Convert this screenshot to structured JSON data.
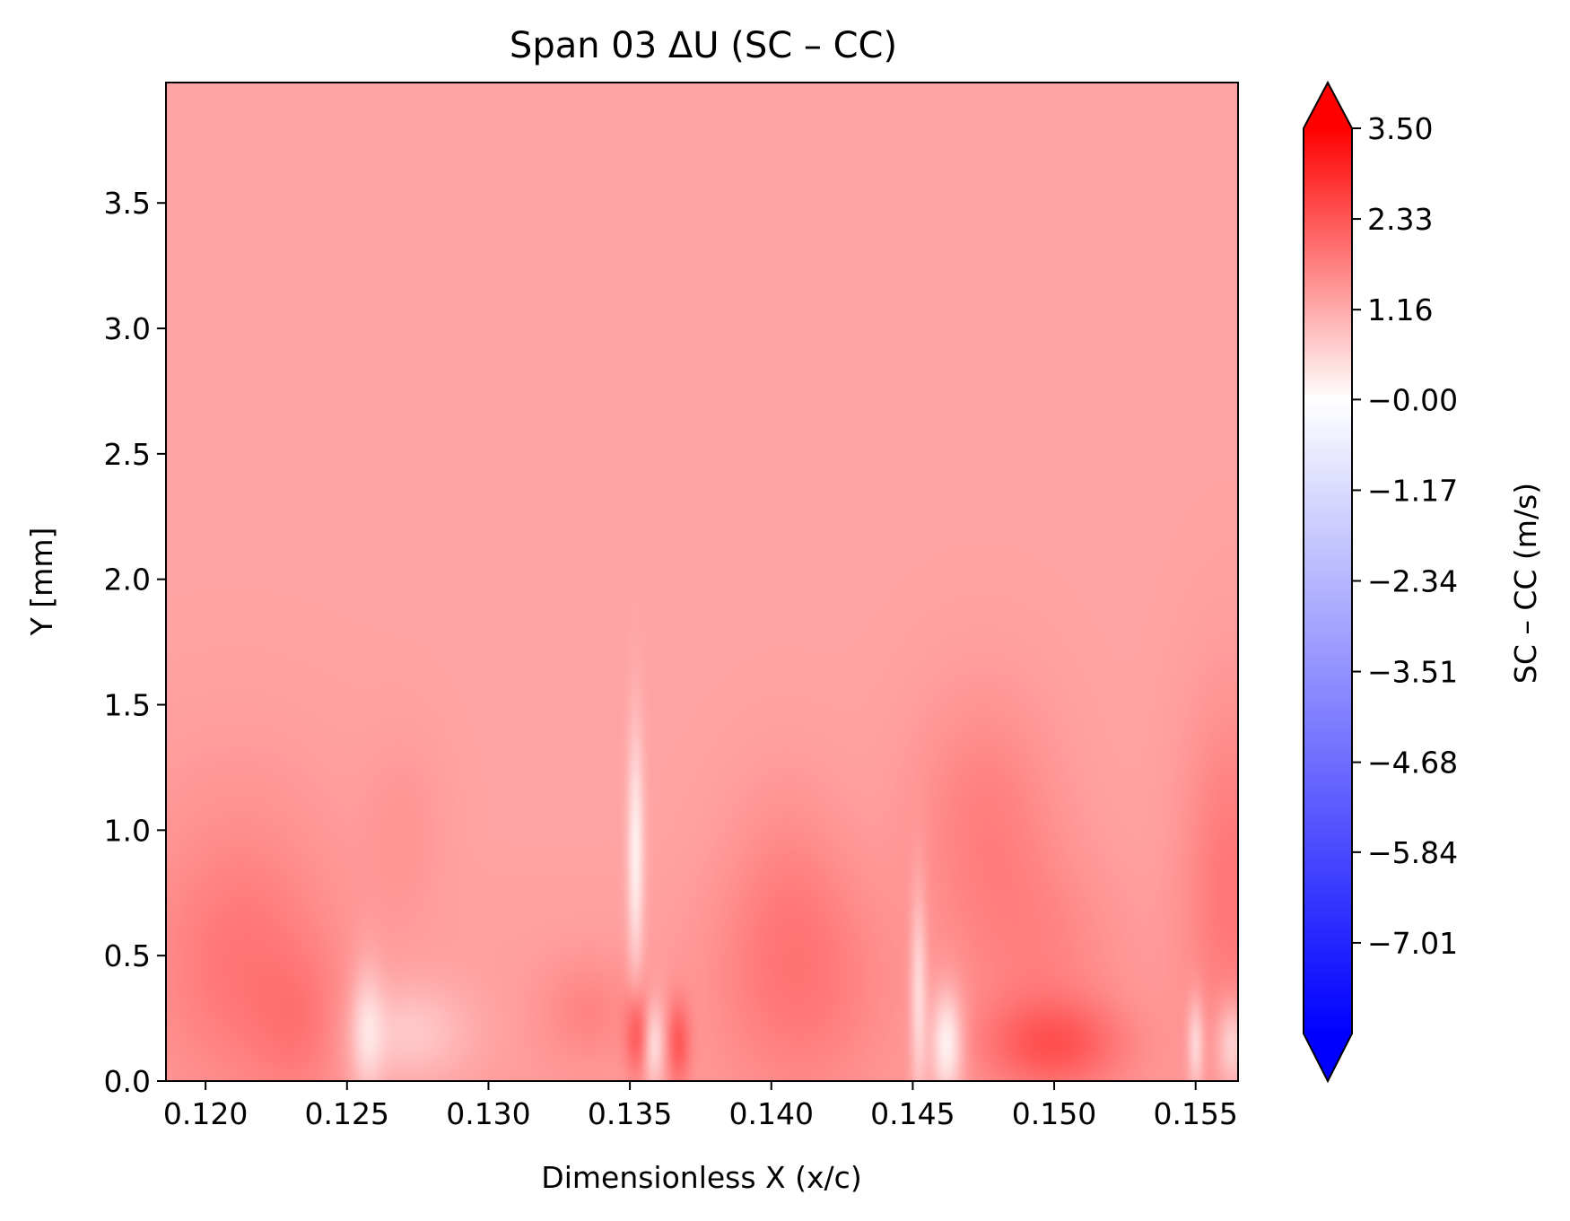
{
  "chart_data": {
    "type": "heatmap",
    "title": "Span 03  ΔU (SC – CC)",
    "xlabel": "Dimensionless X (x/c)",
    "ylabel": "Y [mm]",
    "xlim": [
      0.1186,
      0.1565
    ],
    "ylim": [
      0.0,
      3.98
    ],
    "x_ticks": [
      0.12,
      0.125,
      0.13,
      0.135,
      0.14,
      0.145,
      0.15,
      0.155
    ],
    "x_tick_labels": [
      "0.120",
      "0.125",
      "0.130",
      "0.135",
      "0.140",
      "0.145",
      "0.150",
      "0.155"
    ],
    "y_ticks": [
      0.0,
      0.5,
      1.0,
      1.5,
      2.0,
      2.5,
      3.0,
      3.5
    ],
    "y_tick_labels": [
      "0.0",
      "0.5",
      "1.0",
      "1.5",
      "2.0",
      "2.5",
      "3.0",
      "3.5"
    ],
    "colormap": "bwr",
    "colorbar": {
      "label": "SC – CC  (m/s)",
      "vmin": -8.18,
      "vmax": 3.5,
      "extend": "both",
      "ticks": [
        3.5,
        2.33,
        1.16,
        -0.0,
        -1.17,
        -2.34,
        -3.51,
        -4.68,
        -5.84,
        -7.01
      ],
      "tick_labels": [
        "3.50",
        "2.33",
        "1.16",
        "−0.00",
        "−1.17",
        "−2.34",
        "−3.51",
        "−4.68",
        "−5.84",
        "−7.01"
      ],
      "colors": {
        "low": "#0000ff",
        "mid": "#ffffff",
        "high": "#ff0000"
      }
    },
    "background_value": -0.25,
    "features": [
      {
        "kind": "blob",
        "x": 0.1213,
        "y": 0.45,
        "sx": 0.0023,
        "sy": 0.35,
        "value": 0.9
      },
      {
        "kind": "blob",
        "x": 0.1235,
        "y": 0.2,
        "sx": 0.0012,
        "sy": 0.2,
        "value": 0.6
      },
      {
        "kind": "blob",
        "x": 0.121,
        "y": 1.0,
        "sx": 0.003,
        "sy": 0.35,
        "value": 0.25
      },
      {
        "kind": "blob",
        "x": 0.1271,
        "y": 0.19,
        "sx": 0.0016,
        "sy": 0.14,
        "value": -1.0
      },
      {
        "kind": "blob",
        "x": 0.1257,
        "y": 0.2,
        "sx": 0.0004,
        "sy": 0.2,
        "value": -1.2
      },
      {
        "kind": "blob",
        "x": 0.127,
        "y": 1.0,
        "sx": 0.001,
        "sy": 0.25,
        "value": 0.3
      },
      {
        "kind": "blob",
        "x": 0.1335,
        "y": 0.28,
        "sx": 0.0012,
        "sy": 0.15,
        "value": 0.6
      },
      {
        "kind": "blob",
        "x": 0.1352,
        "y": 0.9,
        "sx": 0.0002,
        "sy": 0.35,
        "value": -1.8
      },
      {
        "kind": "blob",
        "x": 0.1353,
        "y": 0.18,
        "sx": 0.0003,
        "sy": 0.12,
        "value": 1.8
      },
      {
        "kind": "blob",
        "x": 0.1358,
        "y": 0.15,
        "sx": 0.0003,
        "sy": 0.12,
        "value": -1.8
      },
      {
        "kind": "blob",
        "x": 0.1367,
        "y": 0.15,
        "sx": 0.0003,
        "sy": 0.12,
        "value": 1.5
      },
      {
        "kind": "blob",
        "x": 0.141,
        "y": 0.4,
        "sx": 0.0022,
        "sy": 0.33,
        "value": 0.9
      },
      {
        "kind": "blob",
        "x": 0.1405,
        "y": 0.85,
        "sx": 0.0015,
        "sy": 0.3,
        "value": 0.4
      },
      {
        "kind": "blob",
        "x": 0.1452,
        "y": 0.35,
        "sx": 0.0002,
        "sy": 0.3,
        "value": -1.6
      },
      {
        "kind": "blob",
        "x": 0.1462,
        "y": 0.15,
        "sx": 0.0004,
        "sy": 0.15,
        "value": -2.2
      },
      {
        "kind": "blob",
        "x": 0.1475,
        "y": 1.05,
        "sx": 0.0018,
        "sy": 0.35,
        "value": 0.8
      },
      {
        "kind": "blob",
        "x": 0.15,
        "y": 0.14,
        "sx": 0.0018,
        "sy": 0.13,
        "value": 1.5
      },
      {
        "kind": "blob",
        "x": 0.1495,
        "y": 0.5,
        "sx": 0.002,
        "sy": 0.3,
        "value": 0.6
      },
      {
        "kind": "blob",
        "x": 0.155,
        "y": 0.15,
        "sx": 0.0002,
        "sy": 0.13,
        "value": -1.6
      },
      {
        "kind": "blob",
        "x": 0.1562,
        "y": 0.8,
        "sx": 0.0012,
        "sy": 0.5,
        "value": 1.0
      },
      {
        "kind": "blob",
        "x": 0.1563,
        "y": 0.15,
        "sx": 0.0004,
        "sy": 0.12,
        "value": -1.6
      }
    ]
  }
}
